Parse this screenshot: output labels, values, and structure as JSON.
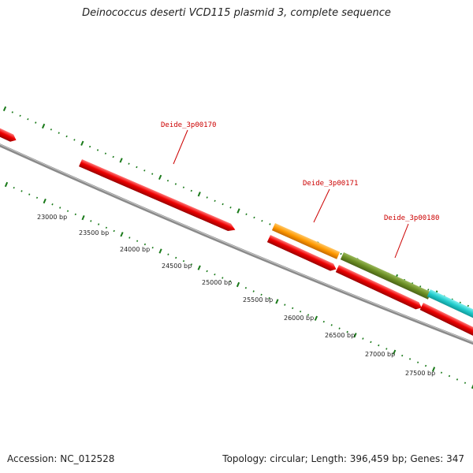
{
  "header": {
    "title": "Deinococcus deserti VCD115 plasmid 3, complete sequence"
  },
  "footer": {
    "accession": "Accession: NC_012528",
    "topology": "Topology: circular; Length: 396,459 bp; Genes: 347"
  },
  "scale": {
    "labels": [
      "23000 bp",
      "23500 bp",
      "24000 bp",
      "24500 bp",
      "25000 bp",
      "25500 bp",
      "26000 bp",
      "26500 bp",
      "27000 bp",
      "27500 bp"
    ]
  },
  "gene_labels": [
    "Deide_3p00170",
    "Deide_3p00171",
    "Deide_3p00180"
  ],
  "colors": {
    "backbone": "#888888",
    "tick": "#1a7a1a",
    "label_red": "#cc0000",
    "feature_red": "#ee0000",
    "feature_orange": "#ff9900",
    "feature_olive": "#6b8e23",
    "feature_cyan": "#22cccc"
  }
}
